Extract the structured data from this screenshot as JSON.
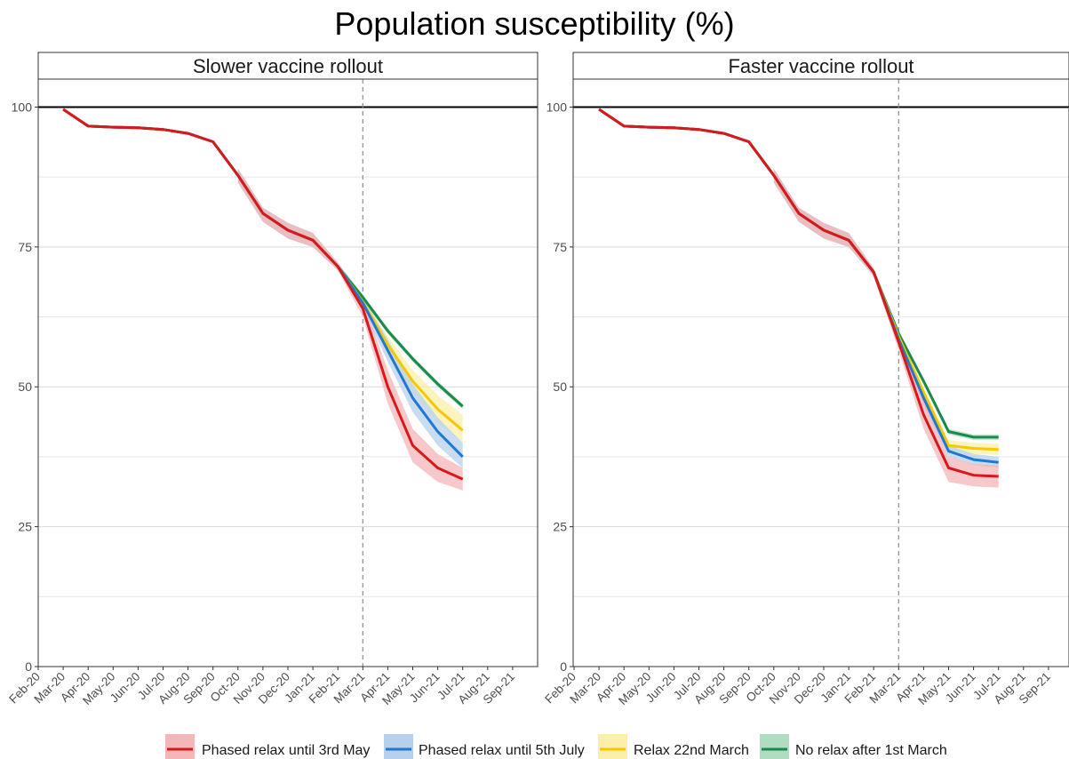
{
  "title": "Population susceptibility (%)",
  "chart_data": [
    {
      "type": "line",
      "panel_title": "Slower vaccine rollout",
      "x": [
        "Feb-20",
        "Mar-20",
        "Apr-20",
        "May-20",
        "Jun-20",
        "Jul-20",
        "Aug-20",
        "Sep-20",
        "Oct-20",
        "Nov-20",
        "Dec-20",
        "Jan-21",
        "Feb-21",
        "Mar-21",
        "Apr-21",
        "May-21",
        "Jun-21",
        "Jul-21",
        "Aug-21",
        "Sep-21"
      ],
      "xlabel": "",
      "ylabel": "",
      "ylim": [
        0,
        105
      ],
      "y_ticks": [
        "0",
        "25",
        "50",
        "75",
        "100"
      ],
      "reference_line": 100,
      "vline": "Mar-21",
      "grid": true,
      "series": [
        {
          "name": "Phased relax until 3rd May",
          "color": "#d7191c",
          "values": [
            null,
            99.6,
            96.6,
            96.4,
            96.3,
            96.0,
            95.3,
            93.8,
            87.8,
            81.0,
            78.0,
            76.2,
            71.5,
            64.0,
            50.0,
            39.5,
            35.5,
            33.5,
            null,
            null
          ],
          "lower": [
            null,
            null,
            null,
            null,
            null,
            null,
            null,
            null,
            86.5,
            79.5,
            76.5,
            75.0,
            70.8,
            62.5,
            47.0,
            36.5,
            33.0,
            31.5,
            null,
            null
          ],
          "upper": [
            null,
            null,
            null,
            null,
            null,
            null,
            null,
            null,
            89.0,
            82.0,
            79.3,
            77.5,
            72.2,
            65.5,
            53.0,
            42.5,
            38.0,
            35.5,
            null,
            null
          ]
        },
        {
          "name": "Phased relax until 5th July",
          "color": "#1f78d1",
          "values": [
            null,
            99.6,
            96.6,
            96.4,
            96.3,
            96.0,
            95.3,
            93.8,
            87.8,
            81.0,
            78.0,
            76.2,
            71.5,
            65.0,
            56.5,
            48.0,
            42.0,
            37.5,
            null,
            null
          ],
          "lower": [
            null,
            null,
            null,
            null,
            null,
            null,
            null,
            null,
            86.5,
            79.5,
            76.5,
            75.0,
            70.8,
            64.0,
            54.5,
            45.5,
            39.5,
            35.5,
            null,
            null
          ],
          "upper": [
            null,
            null,
            null,
            null,
            null,
            null,
            null,
            null,
            89.0,
            82.0,
            79.3,
            77.5,
            72.2,
            66.0,
            58.5,
            50.5,
            44.5,
            40.0,
            null,
            null
          ]
        },
        {
          "name": "Relax 22nd March",
          "color": "#f5c800",
          "values": [
            null,
            99.6,
            96.6,
            96.4,
            96.3,
            96.0,
            95.3,
            93.8,
            87.8,
            81.0,
            78.0,
            76.2,
            71.5,
            65.2,
            57.5,
            51.0,
            46.0,
            42.2,
            null,
            null
          ],
          "lower": [
            null,
            null,
            null,
            null,
            null,
            null,
            null,
            null,
            86.5,
            79.5,
            76.5,
            75.0,
            70.8,
            64.5,
            56.0,
            49.0,
            43.5,
            40.0,
            null,
            null
          ],
          "upper": [
            null,
            null,
            null,
            null,
            null,
            null,
            null,
            null,
            89.0,
            82.0,
            79.3,
            77.5,
            72.2,
            66.0,
            59.0,
            53.0,
            48.5,
            45.0,
            null,
            null
          ]
        },
        {
          "name": "No relax after 1st March",
          "color": "#1a8a4a",
          "values": [
            null,
            99.6,
            96.6,
            96.4,
            96.3,
            96.0,
            95.3,
            93.8,
            87.8,
            81.0,
            78.0,
            76.2,
            71.5,
            66.0,
            60.0,
            55.0,
            50.5,
            46.5,
            null,
            null
          ],
          "lower": [
            null,
            null,
            null,
            null,
            null,
            null,
            null,
            null,
            86.5,
            79.5,
            76.5,
            75.0,
            70.8,
            65.5,
            59.5,
            54.5,
            50.0,
            46.0,
            null,
            null
          ],
          "upper": [
            null,
            null,
            null,
            null,
            null,
            null,
            null,
            null,
            89.0,
            82.0,
            79.3,
            77.5,
            72.2,
            66.5,
            60.5,
            55.5,
            51.0,
            47.0,
            null,
            null
          ]
        }
      ]
    },
    {
      "type": "line",
      "panel_title": "Faster vaccine rollout",
      "x": [
        "Feb-20",
        "Mar-20",
        "Apr-20",
        "May-20",
        "Jun-20",
        "Jul-20",
        "Aug-20",
        "Sep-20",
        "Oct-20",
        "Nov-20",
        "Dec-20",
        "Jan-21",
        "Feb-21",
        "Mar-21",
        "Apr-21",
        "May-21",
        "Jun-21",
        "Jul-21",
        "Aug-21",
        "Sep-21"
      ],
      "xlabel": "",
      "ylabel": "",
      "ylim": [
        0,
        105
      ],
      "y_ticks": [
        "0",
        "25",
        "50",
        "75",
        "100"
      ],
      "reference_line": 100,
      "vline": "Mar-21",
      "grid": true,
      "series": [
        {
          "name": "Phased relax until 3rd May",
          "color": "#d7191c",
          "values": [
            null,
            99.6,
            96.6,
            96.4,
            96.3,
            96.0,
            95.3,
            93.8,
            87.8,
            81.0,
            78.0,
            76.2,
            70.5,
            58.0,
            45.0,
            35.5,
            34.2,
            34.0,
            null,
            null
          ],
          "lower": [
            null,
            null,
            null,
            null,
            null,
            null,
            null,
            null,
            86.5,
            79.5,
            76.5,
            75.0,
            69.8,
            56.5,
            42.5,
            33.0,
            32.2,
            32.0,
            null,
            null
          ],
          "upper": [
            null,
            null,
            null,
            null,
            null,
            null,
            null,
            null,
            89.0,
            82.0,
            79.3,
            77.5,
            71.2,
            59.5,
            47.5,
            37.5,
            36.2,
            36.0,
            null,
            null
          ]
        },
        {
          "name": "Phased relax until 5th July",
          "color": "#1f78d1",
          "values": [
            null,
            99.6,
            96.6,
            96.4,
            96.3,
            96.0,
            95.3,
            93.8,
            87.8,
            81.0,
            78.0,
            76.2,
            70.5,
            58.5,
            48.0,
            38.5,
            37.0,
            36.5,
            null,
            null
          ],
          "lower": [
            null,
            null,
            null,
            null,
            null,
            null,
            null,
            null,
            86.5,
            79.5,
            76.5,
            75.0,
            69.8,
            57.5,
            46.5,
            37.5,
            36.0,
            35.5,
            null,
            null
          ],
          "upper": [
            null,
            null,
            null,
            null,
            null,
            null,
            null,
            null,
            89.0,
            82.0,
            79.3,
            77.5,
            71.2,
            59.5,
            49.5,
            39.5,
            38.0,
            37.5,
            null,
            null
          ]
        },
        {
          "name": "Relax 22nd March",
          "color": "#f5c800",
          "values": [
            null,
            99.6,
            96.6,
            96.4,
            96.3,
            96.0,
            95.3,
            93.8,
            87.8,
            81.0,
            78.0,
            76.2,
            70.5,
            59.0,
            49.0,
            39.5,
            39.0,
            38.8,
            null,
            null
          ],
          "lower": [
            null,
            null,
            null,
            null,
            null,
            null,
            null,
            null,
            86.5,
            79.5,
            76.5,
            75.0,
            69.8,
            58.0,
            48.0,
            38.5,
            38.0,
            37.8,
            null,
            null
          ],
          "upper": [
            null,
            null,
            null,
            null,
            null,
            null,
            null,
            null,
            89.0,
            82.0,
            79.3,
            77.5,
            71.2,
            60.0,
            50.0,
            40.5,
            40.0,
            39.8,
            null,
            null
          ]
        },
        {
          "name": "No relax after 1st March",
          "color": "#1a8a4a",
          "values": [
            null,
            99.6,
            96.6,
            96.4,
            96.3,
            96.0,
            95.3,
            93.8,
            87.8,
            81.0,
            78.0,
            76.2,
            70.5,
            59.5,
            51.0,
            42.0,
            41.0,
            41.0,
            null,
            null
          ],
          "lower": [
            null,
            null,
            null,
            null,
            null,
            null,
            null,
            null,
            86.5,
            79.5,
            76.5,
            75.0,
            69.8,
            59.0,
            50.5,
            41.5,
            40.5,
            40.5,
            null,
            null
          ],
          "upper": [
            null,
            null,
            null,
            null,
            null,
            null,
            null,
            null,
            89.0,
            82.0,
            79.3,
            77.5,
            71.2,
            60.0,
            51.5,
            42.5,
            41.5,
            41.5,
            null,
            null
          ]
        }
      ]
    }
  ],
  "legend": {
    "placement": "bottom",
    "items": [
      {
        "label": "Phased relax until 3rd May",
        "color": "#d7191c",
        "fill": "#f4b6b8"
      },
      {
        "label": "Phased relax until 5th July",
        "color": "#1f78d1",
        "fill": "#b6d0ee"
      },
      {
        "label": "Relax 22nd March",
        "color": "#f5c800",
        "fill": "#fbefaa"
      },
      {
        "label": "No relax after 1st March",
        "color": "#1a8a4a",
        "fill": "#b0dcc2"
      }
    ]
  }
}
